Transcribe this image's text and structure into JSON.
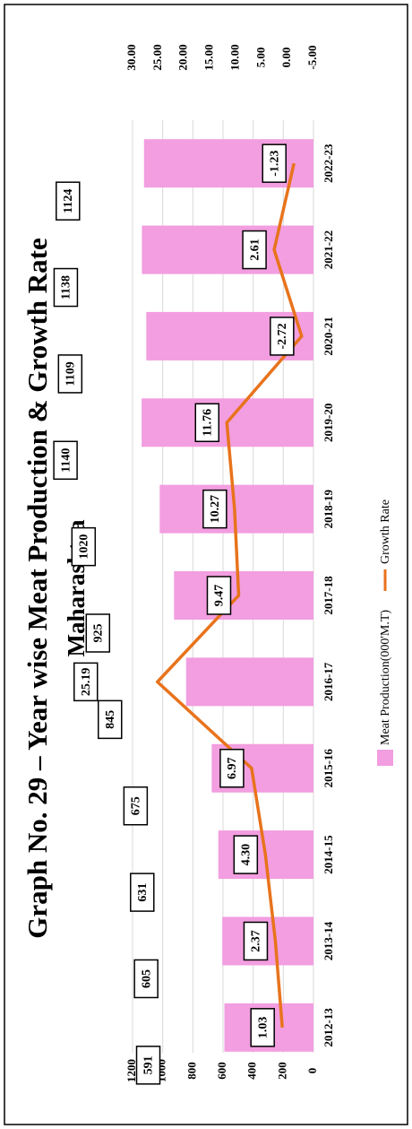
{
  "chart_data": {
    "type": "bar_line",
    "title": "Graph No. 29 – Year wise Meat Production & Growth Rate",
    "subtitle": "Maharashtra",
    "categories": [
      "2012-13",
      "2013-14",
      "2014-15",
      "2015-16",
      "2016-17",
      "2017-18",
      "2018-19",
      "2019-20",
      "2020-21",
      "2021-22",
      "2022-23"
    ],
    "series": [
      {
        "name": "Meat Production(000'M.T)",
        "color": "#f29ee0",
        "type": "bar",
        "values": [
          591,
          605,
          631,
          675,
          845,
          925,
          1020,
          1140,
          1109,
          1138,
          1124
        ]
      },
      {
        "name": "Growth Rate",
        "color": "#e8731c",
        "type": "line",
        "axis": "y2",
        "values": [
          1.03,
          2.37,
          4.3,
          6.97,
          25.19,
          9.47,
          10.27,
          11.76,
          -2.72,
          2.61,
          -1.23
        ],
        "value_labels": [
          "1.03",
          "2.37",
          "4.30",
          "6.97",
          "25.19",
          "9.47",
          "10.27",
          "11.76",
          "-2.72",
          "2.61",
          "-1.23"
        ]
      }
    ],
    "ylim": [
      0,
      1200
    ],
    "yticks": [
      0,
      200,
      400,
      600,
      800,
      1000,
      1200
    ],
    "y2lim": [
      -5,
      30
    ],
    "y2ticks": [
      {
        "value": -5,
        "label": "-5.00"
      },
      {
        "value": 0,
        "label": "0.00"
      },
      {
        "value": 5,
        "label": "5.00"
      },
      {
        "value": 10,
        "label": "10.00"
      },
      {
        "value": 15,
        "label": "15.00"
      },
      {
        "value": 20,
        "label": "20.00"
      },
      {
        "value": 25,
        "label": "25.00"
      },
      {
        "value": 30,
        "label": "30.00"
      }
    ],
    "grid": true,
    "legend": "bottom"
  }
}
